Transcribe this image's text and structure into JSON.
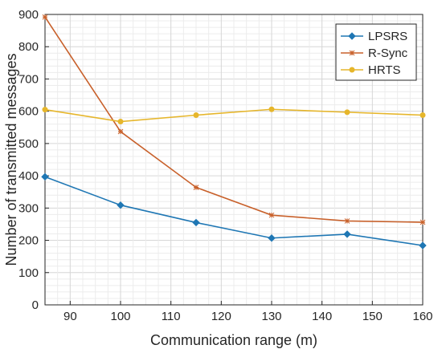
{
  "chart_data": {
    "type": "line",
    "xlabel": "Communication range (m)",
    "ylabel": "Number of transmitted messages",
    "xlim": [
      85,
      160
    ],
    "ylim": [
      0,
      900
    ],
    "xticks": [
      90,
      100,
      110,
      120,
      130,
      140,
      150,
      160
    ],
    "yticks": [
      0,
      100,
      200,
      300,
      400,
      500,
      600,
      700,
      800,
      900
    ],
    "grid": "minor",
    "legend_position": "top-right",
    "x": [
      85,
      100,
      115,
      130,
      145,
      160
    ],
    "series": [
      {
        "name": "LPSRS",
        "color": "#1f77b4",
        "marker": "diamond",
        "values": [
          397,
          309,
          255,
          207,
          219,
          184
        ]
      },
      {
        "name": "R-Sync",
        "color": "#c8602a",
        "marker": "star",
        "values": [
          892,
          537,
          364,
          278,
          260,
          256
        ]
      },
      {
        "name": "HRTS",
        "color": "#e6b62b",
        "marker": "circle",
        "values": [
          605,
          568,
          588,
          606,
          597,
          588
        ]
      }
    ]
  }
}
